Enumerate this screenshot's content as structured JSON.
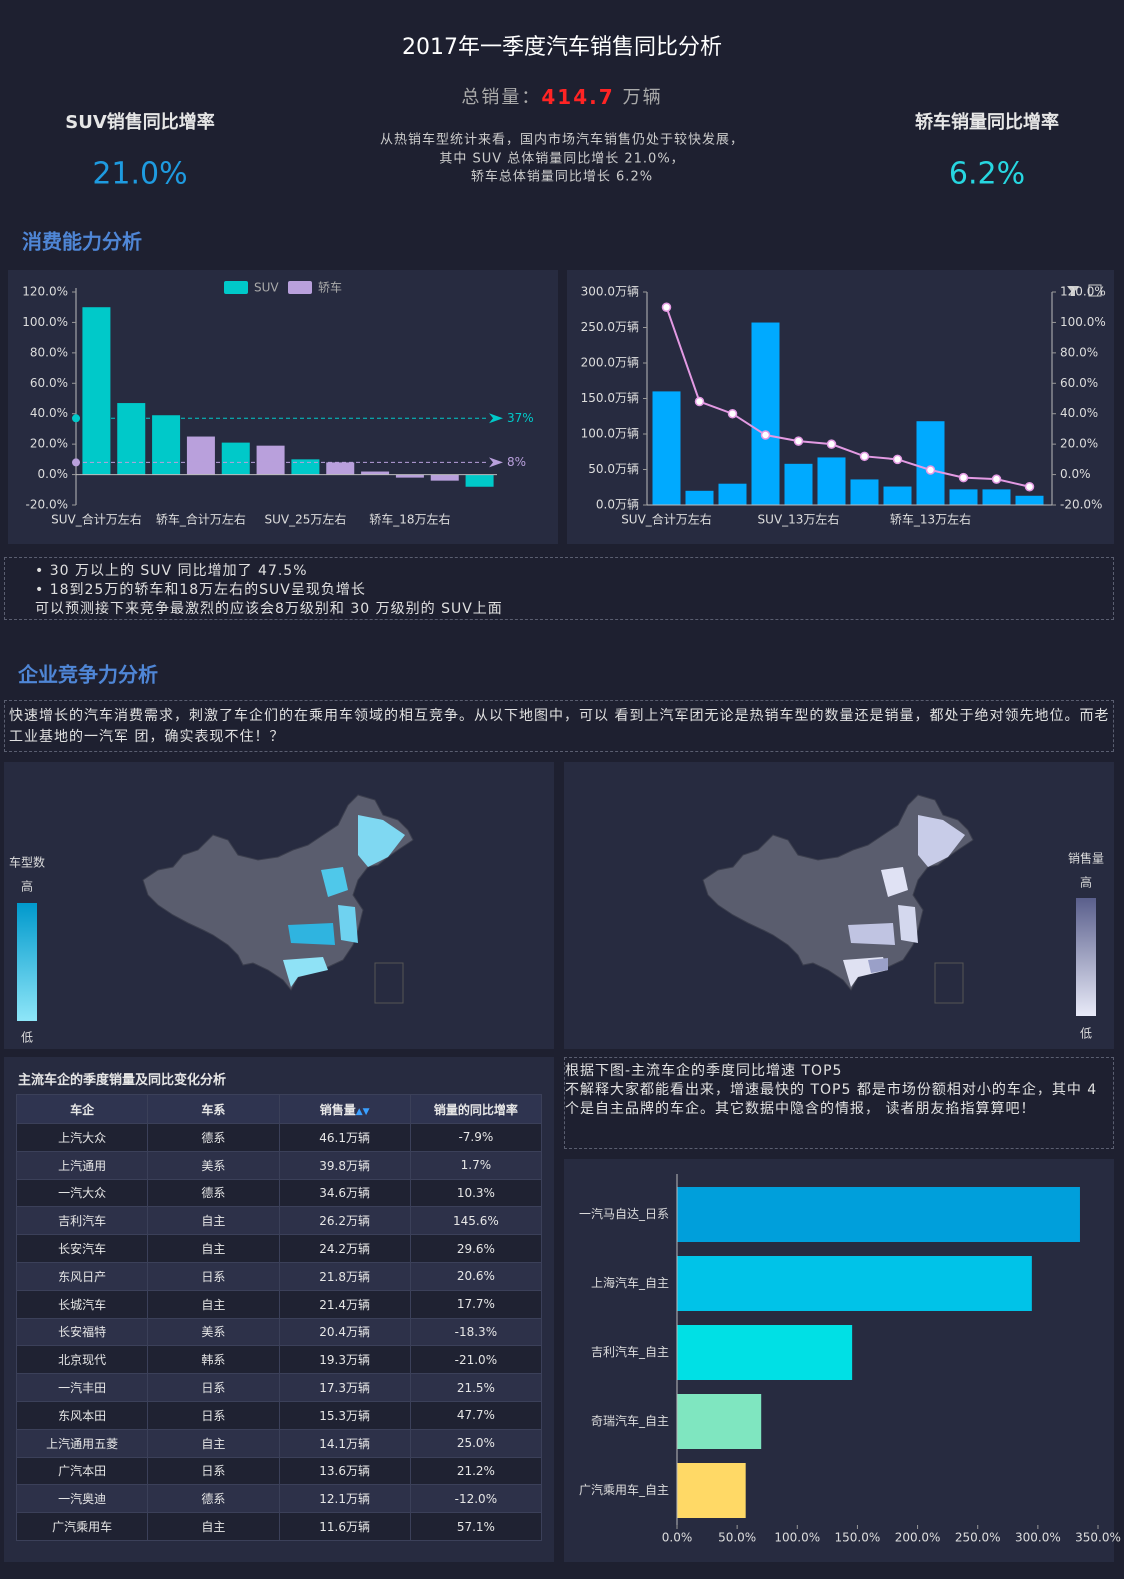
{
  "header": {
    "title": "2017年一季度汽车销售同比分析",
    "total_label": "总销量：",
    "total_value": "414.7",
    "total_unit": "万辆",
    "description": [
      "从热销车型统计来看，国内市场汽车销售仍处于较快发展，",
      "其中 SUV 总体销量同比增长 21.0%，",
      "轿车总体销量同比增长 6.2%"
    ]
  },
  "kpis": [
    {
      "label": "SUV销售同比增率",
      "value": "21.0%"
    },
    {
      "label": "轿车销量同比增率",
      "value": "6.2%"
    }
  ],
  "sections": [
    "消费能力分析",
    "企业竞争力分析"
  ],
  "notes": [
    "• 30 万以上的 SUV 同比增加了 47.5%",
    "• 18到25万的轿车和18万左右的SUV呈现负增长",
    "可以预测接下来竞争最激烈的应该会8万级别和 30 万级别的 SUV上面"
  ],
  "intro": "快速增长的汽车消费需求，刺激了车企们的在乘用车领域的相互竞争。从以下地图中，可以 看到上汽军团无论是热销车型的数量还是销量，都处于绝对领先地位。而老工业基地的一汽军 团，确实表现不住！？",
  "maps": [
    {
      "legend_title": "车型数",
      "high": "高",
      "low": "低"
    },
    {
      "legend_title": "销售量",
      "high": "高",
      "low": "低"
    }
  ],
  "table": {
    "title": "主流车企的季度销量及同比变化分析",
    "columns": [
      "车企",
      "车系",
      "销售量",
      "销量的同比增率"
    ],
    "rows": [
      [
        "上汽大众",
        "德系",
        "46.1万辆",
        "-7.9%"
      ],
      [
        "上汽通用",
        "美系",
        "39.8万辆",
        "1.7%"
      ],
      [
        "一汽大众",
        "德系",
        "34.6万辆",
        "10.3%"
      ],
      [
        "吉利汽车",
        "自主",
        "26.2万辆",
        "145.6%"
      ],
      [
        "长安汽车",
        "自主",
        "24.2万辆",
        "29.6%"
      ],
      [
        "东风日产",
        "日系",
        "21.8万辆",
        "20.6%"
      ],
      [
        "长城汽车",
        "自主",
        "21.4万辆",
        "17.7%"
      ],
      [
        "长安福特",
        "美系",
        "20.4万辆",
        "-18.3%"
      ],
      [
        "北京现代",
        "韩系",
        "19.3万辆",
        "-21.0%"
      ],
      [
        "一汽丰田",
        "日系",
        "17.3万辆",
        "21.5%"
      ],
      [
        "东风本田",
        "日系",
        "15.3万辆",
        "47.7%"
      ],
      [
        "上汽通用五菱",
        "自主",
        "14.1万辆",
        "25.0%"
      ],
      [
        "广汽本田",
        "日系",
        "13.6万辆",
        "21.2%"
      ],
      [
        "一汽奥迪",
        "德系",
        "12.1万辆",
        "-12.0%"
      ],
      [
        "广汽乘用车",
        "自主",
        "11.6万辆",
        "57.1%"
      ]
    ]
  },
  "top5_note": {
    "title": "根据下图-主流车企的季度同比增速 TOP5",
    "text": "不解释大家都能看出来，增速最快的 TOP5 都是市场份额相对小的车企，其中 4 个是自主品牌的车企。其它数据中隐含的情报， 读者朋友掐指算算吧！"
  },
  "chart_data": [
    {
      "type": "bar",
      "legend": "top",
      "categories": [
        "SUV_合计万左右",
        null,
        null,
        "轿车_合计万左右",
        null,
        null,
        "SUV_25万左右",
        null,
        null,
        "轿车_18万左右",
        null,
        null
      ],
      "series": [
        {
          "name": "SUV",
          "color": "#00c9c9",
          "values": [
            110,
            47,
            39,
            null,
            21,
            null,
            10,
            null,
            null,
            null,
            null,
            -8
          ]
        },
        {
          "name": "轿车",
          "color": "#b9a0dc",
          "values": [
            null,
            null,
            null,
            25,
            null,
            19,
            null,
            8,
            2,
            -2,
            -4,
            null
          ]
        }
      ],
      "ylim": [
        -20,
        120
      ],
      "yticks": [
        {
          "value": -20,
          "label": "-20.0%"
        },
        {
          "value": 0,
          "label": "0.0%"
        },
        {
          "value": 20,
          "label": "20.0%"
        },
        {
          "value": 40,
          "label": "40.0%"
        },
        {
          "value": 60,
          "label": "60.0%"
        },
        {
          "value": 80,
          "label": "80.0%"
        },
        {
          "value": 100,
          "label": "100.0%"
        },
        {
          "value": 120,
          "label": "120.0%"
        }
      ],
      "reference_lines": [
        {
          "value": 37,
          "label": "37%",
          "color": "#00c9c9"
        },
        {
          "value": 8,
          "label": "8%",
          "color": "#b9a0dc"
        }
      ]
    },
    {
      "type": "bar_line",
      "categories": [
        "SUV_合计万左右",
        null,
        null,
        null,
        "SUV_13万左右",
        null,
        null,
        null,
        "轿车_13万左右",
        null,
        null,
        null
      ],
      "series": [
        {
          "type": "bar",
          "color": "#00aaff",
          "values": [
            160,
            20,
            30,
            257,
            58,
            67,
            36,
            26,
            118,
            22,
            22,
            13
          ]
        },
        {
          "type": "line",
          "axis": "y2",
          "color": "#e39ae3",
          "values": [
            110,
            48,
            40,
            26,
            22,
            20,
            12,
            10,
            3,
            -2,
            -3,
            -8
          ]
        }
      ],
      "ylim": [
        0,
        300
      ],
      "yticks": [
        {
          "value": 0,
          "label": "0.0万辆"
        },
        {
          "value": 50,
          "label": "50.0万辆"
        },
        {
          "value": 100,
          "label": "100.0万辆"
        },
        {
          "value": 150,
          "label": "150.0万辆"
        },
        {
          "value": 200,
          "label": "200.0万辆"
        },
        {
          "value": 250,
          "label": "250.0万辆"
        },
        {
          "value": 300,
          "label": "300.0万辆"
        }
      ],
      "y2lim": [
        -20,
        120
      ],
      "y2ticks": [
        {
          "value": -20,
          "label": "-20.0%"
        },
        {
          "value": 0,
          "label": "0.0%"
        },
        {
          "value": 20,
          "label": "20.0%"
        },
        {
          "value": 40,
          "label": "40.0%"
        },
        {
          "value": 60,
          "label": "60.0%"
        },
        {
          "value": 80,
          "label": "80.0%"
        },
        {
          "value": 100,
          "label": "100.0%"
        },
        {
          "value": 120,
          "label": "120.0%"
        }
      ]
    },
    {
      "type": "hbar",
      "categories": [
        "一汽马自达_日系",
        "上海汽车_自主",
        "吉利汽车_自主",
        "奇瑞汽车_自主",
        "广汽乘用车_自主"
      ],
      "values": [
        335,
        295,
        145.6,
        70,
        57.1
      ],
      "colors": [
        "#009fdb",
        "#00c3e8",
        "#00e0e5",
        "#7fe6c0",
        "#ffd966"
      ],
      "xlim": [
        0,
        350
      ],
      "xticks": [
        {
          "value": 0,
          "label": "0.0%"
        },
        {
          "value": 50,
          "label": "50.0%"
        },
        {
          "value": 100,
          "label": "100.0%"
        },
        {
          "value": 150,
          "label": "150.0%"
        },
        {
          "value": 200,
          "label": "200.0%"
        },
        {
          "value": 250,
          "label": "250.0%"
        },
        {
          "value": 300,
          "label": "300.0%"
        },
        {
          "value": 350,
          "label": "350.0%"
        }
      ]
    }
  ]
}
